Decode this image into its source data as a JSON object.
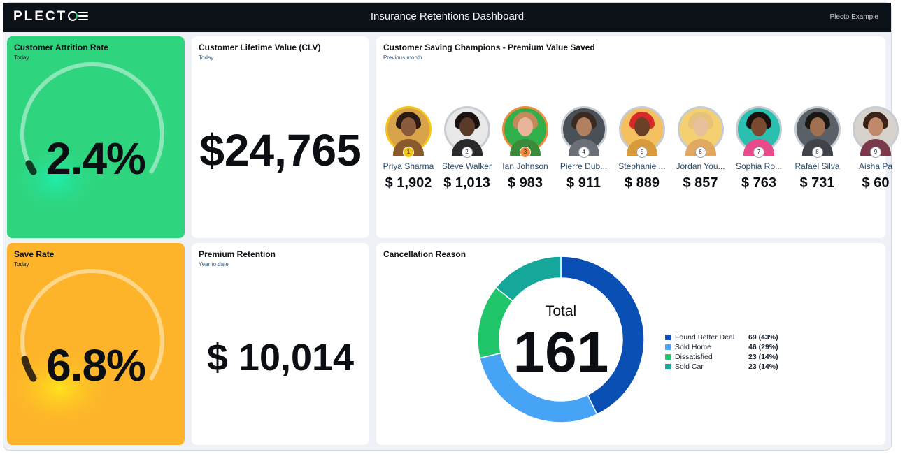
{
  "header": {
    "logo": "PLECTO",
    "title": "Insurance Retentions Dashboard",
    "account": "Plecto Example"
  },
  "attrition": {
    "title": "Customer Attrition Rate",
    "period": "Today",
    "value": "2.4%",
    "level": 0.03
  },
  "clv": {
    "title": "Customer Lifetime Value (CLV)",
    "period": "Today",
    "value": "$24,765"
  },
  "champions": {
    "title": "Customer Saving Champions - Premium Value Saved",
    "period": "Previous month",
    "people": [
      {
        "rank": "1",
        "name": "Priya Sharma",
        "value": "$ 1,902",
        "ring": "#f5c518",
        "skin": "#8a5a3c",
        "hair": "#2a1a12",
        "shirt": "#8a5a2c",
        "bg": "#d9a34a"
      },
      {
        "rank": "2",
        "name": "Steve Walker",
        "value": "$ 1,013",
        "ring": "#c7ccd3",
        "skin": "#5a3a28",
        "hair": "#1a1210",
        "shirt": "#2a2a2a",
        "bg": "#e8e8e8"
      },
      {
        "rank": "3",
        "name": "Ian Johnson",
        "value": "$ 983",
        "ring": "#f08a3c",
        "skin": "#e8b49a",
        "hair": "#c48a5a",
        "shirt": "#3a8a3a",
        "bg": "#2fb04a"
      },
      {
        "rank": "4",
        "name": "Pierre Dub...",
        "value": "$ 911",
        "ring": "#c7ccd3",
        "skin": "#b08060",
        "hair": "#3a2a20",
        "shirt": "#6a6f78",
        "bg": "#4a5058"
      },
      {
        "rank": "5",
        "name": "Stephanie ...",
        "value": "$ 889",
        "ring": "#c7ccd3",
        "skin": "#6a4028",
        "hair": "#d8282a",
        "shirt": "#d89a3a",
        "bg": "#f4c060"
      },
      {
        "rank": "6",
        "name": "Jordan You...",
        "value": "$ 857",
        "ring": "#c7ccd3",
        "skin": "#e8c09a",
        "hair": "#e6c27a",
        "shirt": "#e0a860",
        "bg": "#f4d070"
      },
      {
        "rank": "7",
        "name": "Sophia Ro...",
        "value": "$ 763",
        "ring": "#c7ccd3",
        "skin": "#7a4a30",
        "hair": "#1a1210",
        "shirt": "#e84a8a",
        "bg": "#2ac0b0"
      },
      {
        "rank": "8",
        "name": "Rafael Silva",
        "value": "$ 731",
        "ring": "#c7ccd3",
        "skin": "#a07050",
        "hair": "#1a1614",
        "shirt": "#404448",
        "bg": "#5a6068"
      },
      {
        "rank": "9",
        "name": "Aisha Pa",
        "value": "$ 60",
        "ring": "#c7ccd3",
        "skin": "#c08a6a",
        "hair": "#3a2218",
        "shirt": "#7a3a4a",
        "bg": "#d8d2cc"
      }
    ]
  },
  "save_rate": {
    "title": "Save Rate",
    "period": "Today",
    "value": "6.8%",
    "level": 0.07
  },
  "premium": {
    "title": "Premium Retention",
    "period": "Year to date",
    "value": "$ 10,014"
  },
  "cancellation": {
    "title": "Cancellation Reason",
    "total_label": "Total",
    "total": "161"
  },
  "chart_data": {
    "type": "pie",
    "title": "Cancellation Reason",
    "categories": [
      "Found Better Deal",
      "Sold Home",
      "Dissatisfied",
      "Sold Car"
    ],
    "values": [
      69,
      46,
      23,
      23
    ],
    "labels": [
      "69 (43%)",
      "46 (29%)",
      "23 (14%)",
      "23 (14%)"
    ],
    "colors": [
      "#0a4fb4",
      "#47a3f5",
      "#22c66a",
      "#14a79a"
    ],
    "legend": "right"
  },
  "colors": {
    "topbar": "#0c1118",
    "attrition_card": "#2fd47e",
    "save_rate_card": "#fdb42a"
  }
}
